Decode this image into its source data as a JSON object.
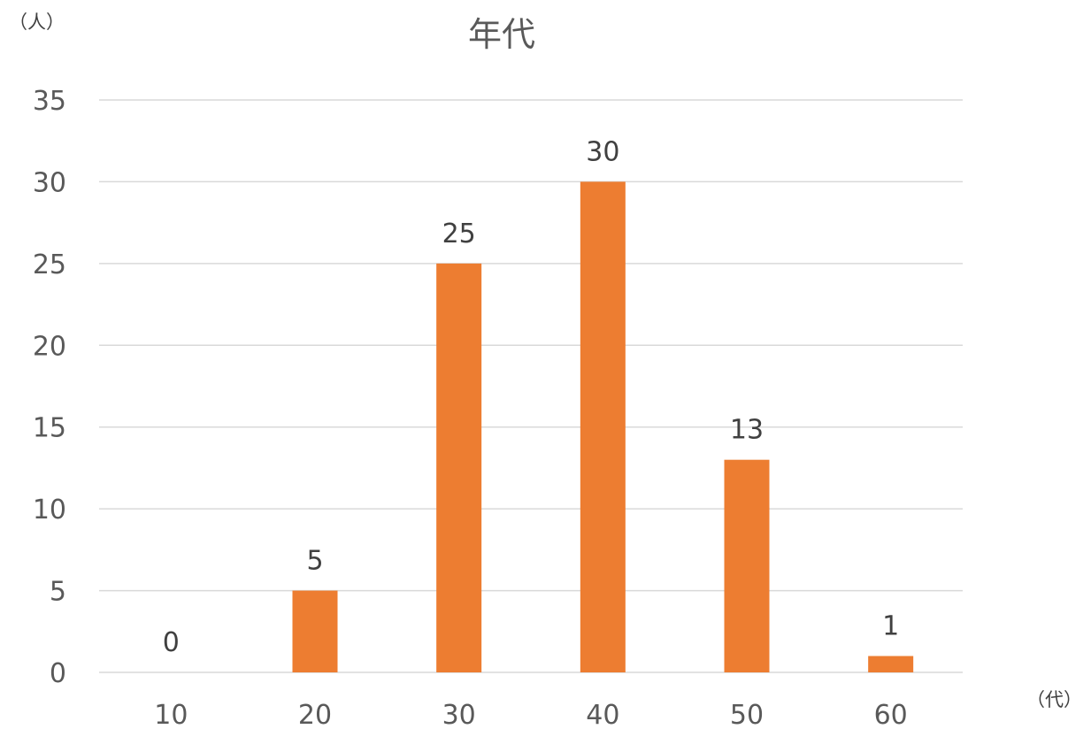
{
  "chart_data": {
    "type": "bar",
    "title": "年代",
    "ylabel": "（人）",
    "xlabel": "（代）",
    "categories": [
      "10",
      "20",
      "30",
      "40",
      "50",
      "60"
    ],
    "values": [
      0,
      5,
      25,
      30,
      13,
      1
    ],
    "data_labels": [
      "0",
      "5",
      "25",
      "30",
      "13",
      "1"
    ],
    "ylim": [
      0,
      35
    ],
    "yticks": [
      "0",
      "5",
      "10",
      "15",
      "20",
      "25",
      "30",
      "35"
    ],
    "grid": true,
    "legend": "none",
    "bar_color": "#ed7d31"
  }
}
